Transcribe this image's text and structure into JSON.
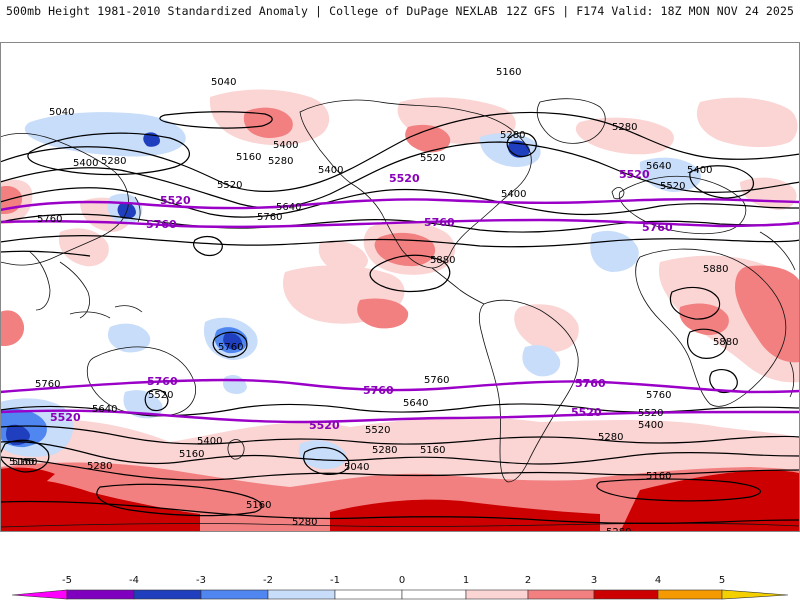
{
  "header": {
    "left": "500mb Height 1981-2010 Standardized Anomaly | College of DuPage NEXLAB",
    "right": "12Z GFS | F174 Valid: 18Z MON NOV 24 2025"
  },
  "colors": {
    "map_bg": "#ffffff",
    "contour": "#000000",
    "highlight_contour": "#9a00c8",
    "coast": "#111111",
    "anom_neg5": "#ff00ff",
    "anom_neg4": "#8000c0",
    "anom_neg3": "#1f3fbf",
    "anom_neg2": "#4f86f0",
    "anom_neg1": "#c8ddfa",
    "anom_pos1": "#fbd4d4",
    "anom_pos2": "#f28080",
    "anom_pos3": "#cc0000",
    "anom_pos4": "#f59a00",
    "anom_pos5": "#f5d000"
  },
  "contours": {
    "black_levels": [
      "5040",
      "5160",
      "5280",
      "5400",
      "5520",
      "5640",
      "5760",
      "5880"
    ],
    "purple_levels": [
      "5520",
      "5760"
    ],
    "labels": {
      "l5040_a": "5040",
      "l5040_b": "5040",
      "l5040_c": "5040",
      "l5160_a": "5160",
      "l5160_b": "5160",
      "l5160_c": "5160",
      "l5160_d": "5160",
      "l5160_e": "5160",
      "l5160_f": "5160",
      "l5160_g": "5160",
      "l5160_h": "5160",
      "l5280_a": "5280",
      "l5280_b": "5280",
      "l5280_c": "5280",
      "l5280_d": "5280",
      "l5280_e": "5280",
      "l5280_f": "5280",
      "l5280_g": "5280",
      "l5280_h": "5280",
      "l5280_i": "5280",
      "l5400_a": "5400",
      "l5400_b": "5400",
      "l5400_c": "5400",
      "l5400_d": "5400",
      "l5400_e": "5400",
      "l5400_f": "5400",
      "l5400_g": "5400",
      "l5520_a": "5520",
      "l5520_b": "5520",
      "l5520_c": "5520",
      "l5520_d": "5520",
      "l5520_e": "5520",
      "l5520_f": "5520",
      "l5640_a": "5640",
      "l5640_b": "5640",
      "l5640_c": "5640",
      "l5640_d": "5640",
      "l5760_a": "5760",
      "l5760_b": "5760",
      "l5760_c": "5760",
      "l5760_d": "5760",
      "l5760_e": "5760",
      "l5760_f": "5760",
      "l5880_a": "5880",
      "l5880_b": "5880",
      "l5880_c": "5880",
      "p5520_a": "5520",
      "p5520_b": "5520",
      "p5520_c": "5520",
      "p5520_d": "5520",
      "p5520_e": "5520",
      "p5520_f": "5520",
      "p5760_a": "5760",
      "p5760_b": "5760",
      "p5760_c": "5760",
      "p5760_d": "5760",
      "p5760_e": "5760",
      "p5760_f": "5760"
    }
  },
  "colorbar": {
    "ticks": [
      "-5",
      "-4",
      "-3",
      "-2",
      "-1",
      "0",
      "1",
      "2",
      "3",
      "4",
      "5"
    ]
  }
}
